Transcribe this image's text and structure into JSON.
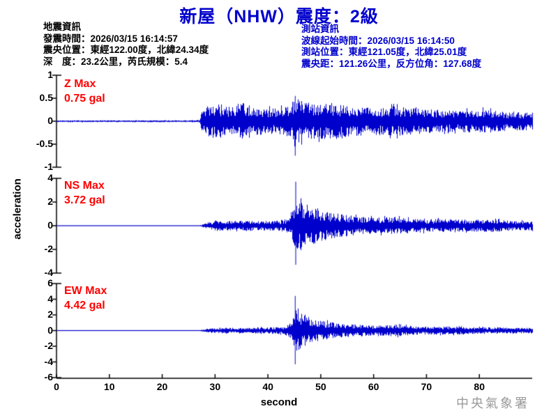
{
  "title": "新屋（NHW）震度：2級",
  "earthquake_info": {
    "heading": "地震資訊",
    "lines": [
      "發震時間：2026/03/15 16:14:57",
      "震央位置：東經122.00度，北緯24.34度",
      "深　度：23.2公里，芮氏規模：5.4"
    ]
  },
  "station_info": {
    "heading": "測站資訊",
    "lines": [
      "波線起始時間：2026/03/15 16:14:50",
      "測站位置：東經121.05度，北緯25.01度",
      "震央距：121.26公里，反方位角：127.68度"
    ]
  },
  "footer": {
    "xlabel": "second",
    "agency": "中央氣象署"
  },
  "colors": {
    "title_blue": "#0000CC",
    "trace_blue": "#0000CD",
    "label_red": "#FF0000",
    "axis_black": "#000000",
    "agency_gray": "#9A9A9A",
    "background": "#FFFFFF"
  },
  "chart_data": {
    "type": "line",
    "xlabel": "second",
    "ylabel": "acceleration",
    "x_range": [
      0,
      90
    ],
    "x_ticks": [
      0,
      10,
      20,
      30,
      40,
      50,
      60,
      70,
      80
    ],
    "p_arrival_s": 27.5,
    "s_arrival_s": 45.1,
    "traces": [
      {
        "name": "Z",
        "label": "Z Max",
        "max_label": "0.75 gal",
        "max_gal": 0.75,
        "ylim": [
          -1,
          1
        ],
        "yticks": [
          1,
          0.5,
          0,
          -0.5,
          -1
        ],
        "peak": {
          "t": 45.1,
          "pos": 0.55,
          "neg": -0.75
        },
        "envelope": [
          [
            0,
            0.02
          ],
          [
            26,
            0.02
          ],
          [
            27,
            0.03
          ],
          [
            27.5,
            0.22
          ],
          [
            28,
            0.32
          ],
          [
            30,
            0.4
          ],
          [
            33,
            0.3
          ],
          [
            35,
            0.42
          ],
          [
            38,
            0.3
          ],
          [
            41,
            0.28
          ],
          [
            44,
            0.35
          ],
          [
            45.2,
            0.6
          ],
          [
            46,
            0.45
          ],
          [
            48,
            0.4
          ],
          [
            52,
            0.38
          ],
          [
            56,
            0.33
          ],
          [
            60,
            0.3
          ],
          [
            64,
            0.33
          ],
          [
            68,
            0.28
          ],
          [
            72,
            0.25
          ],
          [
            76,
            0.23
          ],
          [
            80,
            0.27
          ],
          [
            84,
            0.22
          ],
          [
            89,
            0.2
          ]
        ]
      },
      {
        "name": "NS",
        "label": "NS Max",
        "max_label": "3.72 gal",
        "max_gal": 3.72,
        "ylim": [
          -4,
          4
        ],
        "yticks": [
          4,
          2,
          0,
          -2,
          -4
        ],
        "peak": {
          "t": 45.2,
          "pos": 3.72,
          "neg": -3.3
        },
        "envelope": [
          [
            0,
            0.025
          ],
          [
            27,
            0.03
          ],
          [
            28,
            0.22
          ],
          [
            30,
            0.45
          ],
          [
            33,
            0.4
          ],
          [
            36,
            0.45
          ],
          [
            39,
            0.4
          ],
          [
            42,
            0.45
          ],
          [
            44,
            0.6
          ],
          [
            44.8,
            1.5
          ],
          [
            45.4,
            2.6
          ],
          [
            45.8,
            2.3
          ],
          [
            46.5,
            1.9
          ],
          [
            48,
            1.7
          ],
          [
            50,
            1.4
          ],
          [
            52,
            1.1
          ],
          [
            55,
            0.9
          ],
          [
            58,
            0.75
          ],
          [
            61,
            0.7
          ],
          [
            64,
            0.75
          ],
          [
            67,
            0.6
          ],
          [
            70,
            0.55
          ],
          [
            74,
            0.6
          ],
          [
            78,
            0.5
          ],
          [
            82,
            0.55
          ],
          [
            86,
            0.45
          ],
          [
            89,
            0.4
          ]
        ]
      },
      {
        "name": "EW",
        "label": "EW Max",
        "max_label": "4.42 gal",
        "max_gal": 4.42,
        "ylim": [
          -6,
          6
        ],
        "yticks": [
          6,
          4,
          2,
          0,
          -2,
          -4,
          -6
        ],
        "peak": {
          "t": 45.1,
          "pos": 4.42,
          "neg": -4.3
        },
        "envelope": [
          [
            0,
            0.025
          ],
          [
            27,
            0.03
          ],
          [
            28,
            0.2
          ],
          [
            31,
            0.38
          ],
          [
            34,
            0.32
          ],
          [
            37,
            0.36
          ],
          [
            40,
            0.42
          ],
          [
            43,
            0.48
          ],
          [
            44.5,
            1.1
          ],
          [
            45.3,
            3.0
          ],
          [
            45.8,
            2.6
          ],
          [
            46.8,
            2.1
          ],
          [
            48,
            1.7
          ],
          [
            50,
            1.3
          ],
          [
            52.5,
            1.0
          ],
          [
            55,
            0.85
          ],
          [
            58,
            0.7
          ],
          [
            61,
            0.65
          ],
          [
            64,
            0.78
          ],
          [
            67,
            0.6
          ],
          [
            70,
            0.5
          ],
          [
            74,
            0.55
          ],
          [
            78,
            0.45
          ],
          [
            82,
            0.42
          ],
          [
            86,
            0.38
          ],
          [
            89,
            0.35
          ]
        ]
      }
    ]
  }
}
